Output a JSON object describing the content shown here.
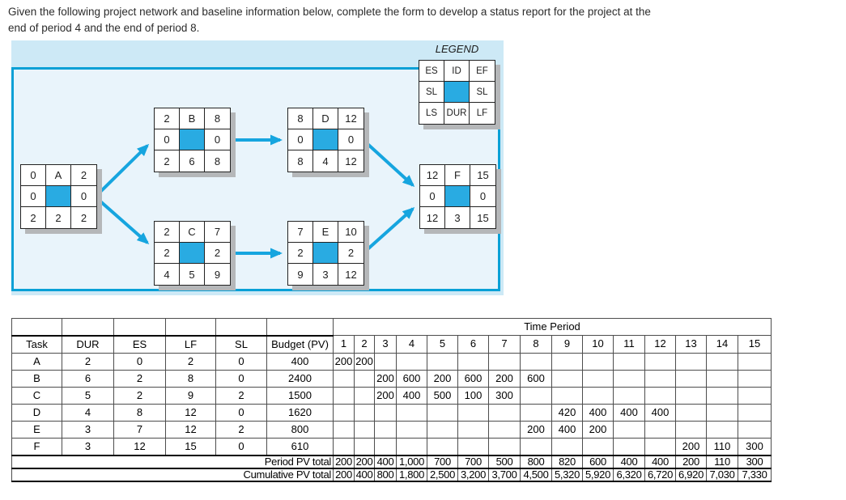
{
  "instruction": {
    "line1": "Given the following project network and baseline information below, complete the form to develop a status report for the project at the",
    "line2": "end of period 4 and the end of period 8."
  },
  "colors": {
    "panel_border_blue": "#09a0d6",
    "panel_outer_bg": "#cde9f6",
    "panel_inner_bg": "#e9f4fb",
    "node_center_blue": "#29abe2",
    "arrow_blue": "#16a5df",
    "node_shadow_gray": "#b5b7b9"
  },
  "network": {
    "legend_title": "LEGEND",
    "legend_cells": [
      "ES",
      "ID",
      "EF",
      "SL",
      "",
      "SL",
      "LS",
      "DUR",
      "LF"
    ],
    "nodes": {
      "A": [
        "0",
        "A",
        "2",
        "0",
        "",
        "0",
        "2",
        "2",
        "2"
      ],
      "B": [
        "2",
        "B",
        "8",
        "0",
        "",
        "0",
        "2",
        "6",
        "8"
      ],
      "D": [
        "8",
        "D",
        "12",
        "0",
        "",
        "0",
        "8",
        "4",
        "12"
      ],
      "C": [
        "2",
        "C",
        "7",
        "2",
        "",
        "2",
        "4",
        "5",
        "9"
      ],
      "E": [
        "7",
        "E",
        "10",
        "2",
        "",
        "2",
        "9",
        "3",
        "12"
      ],
      "F": [
        "12",
        "F",
        "15",
        "0",
        "",
        "0",
        "12",
        "3",
        "15"
      ]
    }
  },
  "table": {
    "time_period_label": "Time Period",
    "left_headers": [
      "Task",
      "DUR",
      "ES",
      "LF",
      "SL",
      "Budget (PV)"
    ],
    "period_headers": [
      "1",
      "2",
      "3",
      "4",
      "5",
      "6",
      "7",
      "8",
      "9",
      "10",
      "11",
      "12",
      "13",
      "14",
      "15"
    ],
    "rows": [
      {
        "task": "A",
        "dur": "2",
        "es": "0",
        "lf": "2",
        "sl": "0",
        "budget": "400",
        "periods": [
          "200",
          "200",
          "",
          "",
          "",
          "",
          "",
          "",
          "",
          "",
          "",
          "",
          "",
          "",
          ""
        ]
      },
      {
        "task": "B",
        "dur": "6",
        "es": "2",
        "lf": "8",
        "sl": "0",
        "budget": "2400",
        "periods": [
          "",
          "",
          "200",
          "600",
          "200",
          "600",
          "200",
          "600",
          "",
          "",
          "",
          "",
          "",
          "",
          ""
        ]
      },
      {
        "task": "C",
        "dur": "5",
        "es": "2",
        "lf": "9",
        "sl": "2",
        "budget": "1500",
        "periods": [
          "",
          "",
          "200",
          "400",
          "500",
          "100",
          "300",
          "",
          "",
          "",
          "",
          "",
          "",
          "",
          ""
        ]
      },
      {
        "task": "D",
        "dur": "4",
        "es": "8",
        "lf": "12",
        "sl": "0",
        "budget": "1620",
        "periods": [
          "",
          "",
          "",
          "",
          "",
          "",
          "",
          "",
          "420",
          "400",
          "400",
          "400",
          "",
          "",
          ""
        ]
      },
      {
        "task": "E",
        "dur": "3",
        "es": "7",
        "lf": "12",
        "sl": "2",
        "budget": "800",
        "periods": [
          "",
          "",
          "",
          "",
          "",
          "",
          "",
          "200",
          "400",
          "200",
          "",
          "",
          "",
          "",
          ""
        ]
      },
      {
        "task": "F",
        "dur": "3",
        "es": "12",
        "lf": "15",
        "sl": "0",
        "budget": "610",
        "periods": [
          "",
          "",
          "",
          "",
          "",
          "",
          "",
          "",
          "",
          "",
          "",
          "",
          "200",
          "110",
          "300"
        ]
      }
    ],
    "period_total_label": "Period PV total",
    "period_totals": [
      "200",
      "200",
      "400",
      "1,000",
      "700",
      "700",
      "500",
      "800",
      "820",
      "600",
      "400",
      "400",
      "200",
      "110",
      "300"
    ],
    "cumulative_total_label": "Cumulative PV total",
    "cumulative_totals": [
      "200",
      "400",
      "800",
      "1,800",
      "2,500",
      "3,200",
      "3,700",
      "4,500",
      "5,320",
      "5,920",
      "6,320",
      "6,720",
      "6,920",
      "7,030",
      "7,330"
    ]
  }
}
